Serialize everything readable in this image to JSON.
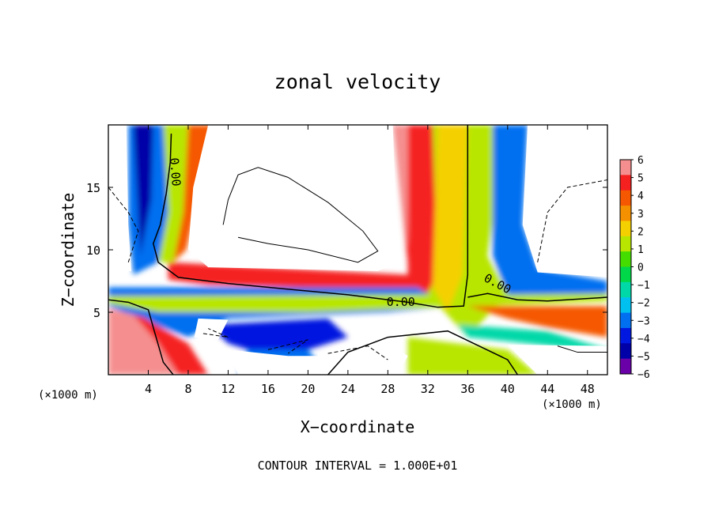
{
  "chart_data": {
    "type": "heatmap",
    "title": "zonal velocity",
    "xlabel": "X−coordinate",
    "ylabel": "Z−coordinate",
    "x_unit_left": "(×1000 m)",
    "x_unit_right": "(×1000 m)",
    "xlim": [
      0,
      50
    ],
    "ylim": [
      0,
      20
    ],
    "x_ticks": [
      4,
      8,
      12,
      16,
      20,
      24,
      28,
      32,
      36,
      40,
      44,
      48
    ],
    "x_tick_labels": [
      "4",
      "8",
      "12",
      "16",
      "20",
      "24",
      "28",
      "32",
      "36",
      "40",
      "44",
      "48"
    ],
    "y_ticks": [
      5,
      10,
      15
    ],
    "y_tick_labels": [
      "5",
      "10",
      "15"
    ],
    "colorbar": {
      "range": [
        -6,
        6
      ],
      "tick_labels": [
        "6",
        "5",
        "4",
        "3",
        "2",
        "1",
        "0",
        "−1",
        "−2",
        "−3",
        "−4",
        "−5",
        "−6"
      ],
      "colors": [
        "#f58f8f",
        "#f52020",
        "#f55800",
        "#f59000",
        "#f5d000",
        "#b8e600",
        "#45dd00",
        "#00d84a",
        "#00d8a8",
        "#00c0f0",
        "#0070f0",
        "#0018e0",
        "#0000a8",
        "#6a00a8"
      ]
    },
    "contour_labels": [
      {
        "text": "0.00",
        "x": 6.3,
        "z": 16.2,
        "angle": 85
      },
      {
        "text": "0.00",
        "x": 29.3,
        "z": 5.5,
        "angle": 0
      },
      {
        "text": "0.00",
        "x": 38.8,
        "z": 7.0,
        "angle": 28
      }
    ],
    "footer": "CONTOUR INTERVAL = 1.000E+01"
  }
}
